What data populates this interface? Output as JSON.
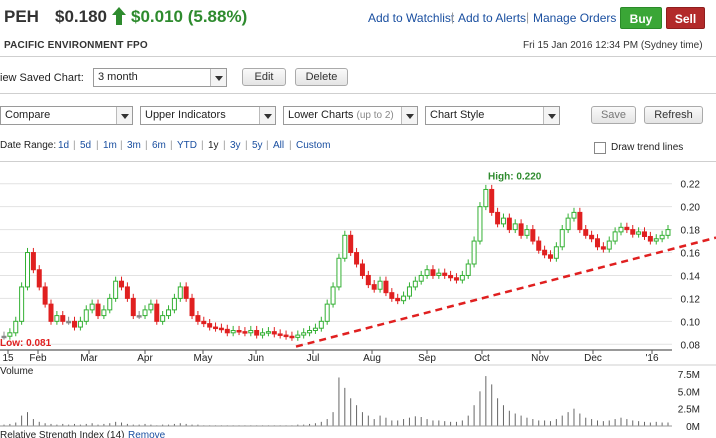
{
  "header": {
    "ticker": "PEH",
    "price": "$0.180",
    "change": "$0.010 (5.88%)",
    "links": [
      "Add to Watchlist",
      "Add to Alerts",
      "Manage Orders"
    ],
    "buy_label": "Buy",
    "sell_label": "Sell",
    "company": "PACIFIC ENVIRONMENT FPO",
    "datetime": "Fri 15 Jan 2016 12:34 PM (Sydney time)",
    "up_color": "#2e8b2e"
  },
  "saved_chart": {
    "label": "iew Saved Chart:",
    "value": "3 month",
    "edit_label": "Edit",
    "delete_label": "Delete"
  },
  "toolbar": {
    "compare": "Compare",
    "upper": "Upper Indicators",
    "lower": "Lower Charts",
    "lower_hint": "(up to 2)",
    "style": "Chart Style",
    "save_label": "Save",
    "refresh_label": "Refresh"
  },
  "date_range": {
    "label": "Date Range:",
    "options": [
      "1d",
      "5d",
      "1m",
      "3m",
      "6m",
      "YTD",
      "1y",
      "3y",
      "5y",
      "All",
      "Custom"
    ],
    "selected": "1y",
    "trend_label": "Draw trend lines"
  },
  "chart_data": {
    "type": "candlestick",
    "x_ticks": [
      "15",
      "Feb",
      "Mar",
      "Apr",
      "May",
      "Jun",
      "Jul",
      "Aug",
      "Sep",
      "Oct",
      "Nov",
      "Dec",
      "'16"
    ],
    "y_ticks": [
      "0.22",
      "0.20",
      "0.18",
      "0.16",
      "0.14",
      "0.12",
      "0.10",
      "0.08"
    ],
    "ylim": [
      0.075,
      0.225
    ],
    "high_annotation": "High: 0.220",
    "low_annotation": "Low: 0.081",
    "high_value": 0.22,
    "low_value": 0.081,
    "up_color": "#33b033",
    "down_color": "#e02020",
    "flat_color": "#888888",
    "trendline_color": "#e02020",
    "closes": [
      0.087,
      0.09,
      0.1,
      0.13,
      0.16,
      0.145,
      0.13,
      0.115,
      0.1,
      0.105,
      0.1,
      0.1,
      0.095,
      0.1,
      0.11,
      0.115,
      0.105,
      0.11,
      0.12,
      0.135,
      0.13,
      0.12,
      0.105,
      0.105,
      0.11,
      0.115,
      0.1,
      0.105,
      0.11,
      0.12,
      0.13,
      0.12,
      0.105,
      0.1,
      0.098,
      0.095,
      0.094,
      0.093,
      0.09,
      0.092,
      0.091,
      0.09,
      0.092,
      0.088,
      0.09,
      0.091,
      0.089,
      0.088,
      0.087,
      0.086,
      0.088,
      0.09,
      0.092,
      0.094,
      0.1,
      0.115,
      0.13,
      0.155,
      0.175,
      0.16,
      0.15,
      0.14,
      0.132,
      0.128,
      0.135,
      0.125,
      0.12,
      0.118,
      0.122,
      0.13,
      0.135,
      0.14,
      0.145,
      0.14,
      0.142,
      0.14,
      0.138,
      0.136,
      0.14,
      0.15,
      0.17,
      0.2,
      0.215,
      0.195,
      0.185,
      0.19,
      0.18,
      0.185,
      0.175,
      0.18,
      0.17,
      0.162,
      0.158,
      0.155,
      0.165,
      0.18,
      0.19,
      0.195,
      0.18,
      0.175,
      0.172,
      0.165,
      0.163,
      0.17,
      0.178,
      0.182,
      0.18,
      0.176,
      0.178,
      0.174,
      0.17,
      0.172,
      0.175,
      0.18
    ],
    "volume": {
      "label": "Volume",
      "y_ticks": [
        "7.5M",
        "5.0M",
        "2.5M",
        "0M"
      ],
      "ylim": [
        0,
        7.5
      ],
      "values": [
        0.2,
        0.3,
        0.5,
        1.5,
        2.0,
        1.0,
        0.6,
        0.4,
        0.3,
        0.2,
        0.3,
        0.2,
        0.3,
        0.2,
        0.3,
        0.4,
        0.2,
        0.3,
        0.4,
        0.6,
        0.5,
        0.3,
        0.2,
        0.2,
        0.3,
        0.2,
        0.1,
        0.2,
        0.2,
        0.3,
        0.4,
        0.3,
        0.2,
        0.2,
        0.1,
        0.1,
        0.1,
        0.1,
        0.1,
        0.1,
        0.1,
        0.1,
        0.1,
        0.1,
        0.1,
        0.1,
        0.1,
        0.1,
        0.1,
        0.1,
        0.2,
        0.2,
        0.3,
        0.4,
        0.6,
        1.0,
        2.0,
        7.0,
        5.5,
        4.0,
        3.0,
        2.0,
        1.5,
        1.0,
        1.5,
        1.2,
        0.8,
        0.8,
        1.0,
        1.2,
        1.4,
        1.3,
        1.0,
        0.8,
        0.8,
        0.7,
        0.6,
        0.6,
        0.8,
        1.5,
        3.0,
        5.0,
        7.2,
        6.0,
        4.0,
        3.0,
        2.2,
        1.8,
        1.5,
        1.2,
        1.0,
        0.8,
        0.8,
        0.7,
        1.0,
        1.5,
        2.0,
        2.5,
        1.8,
        1.2,
        1.0,
        0.8,
        0.7,
        0.8,
        1.0,
        1.2,
        1.0,
        0.8,
        0.7,
        0.6,
        0.5,
        0.6,
        0.5,
        0.5
      ]
    },
    "rsi_label": "Relative Strength Index (14)",
    "rsi_remove": "Remove"
  }
}
